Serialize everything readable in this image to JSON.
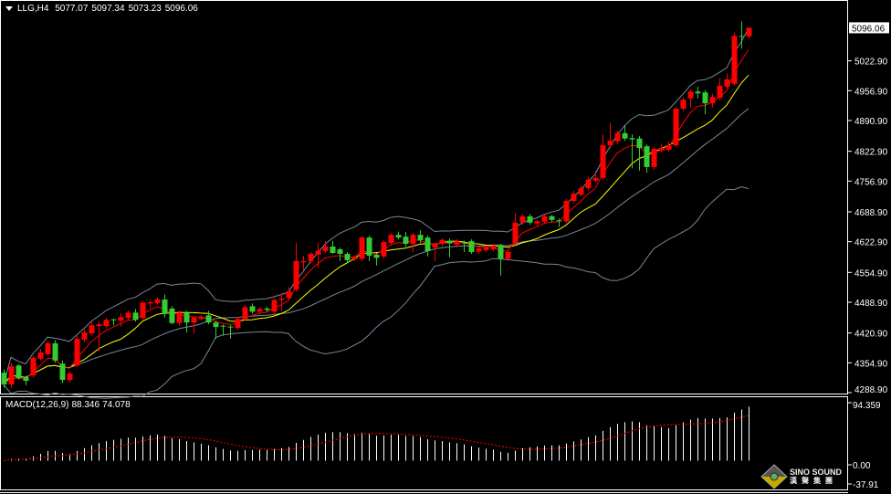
{
  "header": {
    "symbol": "LLG,H4",
    "open": "5077.07",
    "high": "5097.34",
    "low": "5073.23",
    "close": "5096.06"
  },
  "macd_header": {
    "label": "MACD(12,26,9)",
    "main": "88.346",
    "signal": "74.078"
  },
  "logo": {
    "en": "SINO SOUND",
    "cn": "漢聲集團"
  },
  "colors": {
    "up": "#ff0000",
    "down": "#32cd32",
    "ma_fast": "#ff0000",
    "ma_slow": "#ffff00",
    "bands": "#778899",
    "macd_hist": "#ffffff",
    "macd_signal": "#ff0000"
  },
  "chart_data": {
    "type": "candlestick",
    "title": "LLG,H4",
    "ylim": [
      4288.9,
      5157.5
    ],
    "price_axis_ticks": [
      "5022.90",
      "4956.90",
      "4890.90",
      "4822.90",
      "4756.90",
      "4688.90",
      "4622.90",
      "4554.90",
      "4488.90",
      "4420.90",
      "4354.90",
      "4288.90"
    ],
    "current_price": "5096.06",
    "macd_axis_ticks": [
      "94.359",
      "0.00",
      "-37.91"
    ],
    "macd_ylim": [
      -37.91,
      94.359
    ],
    "ohlc": [
      [
        4333,
        4340,
        4300,
        4307
      ],
      [
        4307,
        4355,
        4300,
        4347
      ],
      [
        4349,
        4352,
        4318,
        4321
      ],
      [
        4323,
        4326,
        4305,
        4315
      ],
      [
        4327,
        4370,
        4322,
        4366
      ],
      [
        4364,
        4385,
        4360,
        4378
      ],
      [
        4374,
        4402,
        4370,
        4398
      ],
      [
        4398,
        4405,
        4355,
        4360
      ],
      [
        4353,
        4360,
        4310,
        4317
      ],
      [
        4317,
        4335,
        4312,
        4331
      ],
      [
        4349,
        4415,
        4345,
        4408
      ],
      [
        4406,
        4430,
        4400,
        4422
      ],
      [
        4420,
        4445,
        4415,
        4438
      ],
      [
        4436,
        4446,
        4380,
        4440
      ],
      [
        4436,
        4455,
        4430,
        4450
      ],
      [
        4451,
        4453,
        4438,
        4449
      ],
      [
        4448,
        4465,
        4435,
        4456
      ],
      [
        4454,
        4470,
        4450,
        4466
      ],
      [
        4466,
        4474,
        4446,
        4450
      ],
      [
        4454,
        4492,
        4450,
        4488
      ],
      [
        4486,
        4494,
        4474,
        4489
      ],
      [
        4487,
        4500,
        4483,
        4495
      ],
      [
        4495,
        4506,
        4455,
        4463
      ],
      [
        4475,
        4480,
        4440,
        4443
      ],
      [
        4443,
        4470,
        4437,
        4466
      ],
      [
        4466,
        4470,
        4422,
        4444
      ],
      [
        4444,
        4458,
        4420,
        4455
      ],
      [
        4452,
        4460,
        4448,
        4456
      ],
      [
        4460,
        4470,
        4440,
        4444
      ],
      [
        4444,
        4448,
        4408,
        4434
      ],
      [
        4437,
        4440,
        4415,
        4435
      ],
      [
        4435,
        4438,
        4408,
        4433
      ],
      [
        4432,
        4456,
        4428,
        4452
      ],
      [
        4452,
        4482,
        4448,
        4478
      ],
      [
        4480,
        4486,
        4464,
        4468
      ],
      [
        4468,
        4478,
        4462,
        4474
      ],
      [
        4475,
        4479,
        4468,
        4472
      ],
      [
        4468,
        4498,
        4460,
        4494
      ],
      [
        4494,
        4510,
        4470,
        4497
      ],
      [
        4498,
        4522,
        4494,
        4513
      ],
      [
        4517,
        4620,
        4512,
        4580
      ],
      [
        4577,
        4592,
        4560,
        4580
      ],
      [
        4580,
        4600,
        4575,
        4596
      ],
      [
        4594,
        4620,
        4565,
        4603
      ],
      [
        4602,
        4625,
        4598,
        4612
      ],
      [
        4612,
        4625,
        4596,
        4598
      ],
      [
        4606,
        4610,
        4580,
        4596
      ],
      [
        4596,
        4600,
        4575,
        4582
      ],
      [
        4584,
        4592,
        4580,
        4588
      ],
      [
        4585,
        4636,
        4580,
        4632
      ],
      [
        4632,
        4636,
        4580,
        4592
      ],
      [
        4594,
        4598,
        4570,
        4587
      ],
      [
        4590,
        4626,
        4586,
        4622
      ],
      [
        4620,
        4642,
        4616,
        4638
      ],
      [
        4638,
        4645,
        4628,
        4632
      ],
      [
        4634,
        4645,
        4612,
        4618
      ],
      [
        4618,
        4642,
        4600,
        4638
      ],
      [
        4638,
        4648,
        4620,
        4626
      ],
      [
        4632,
        4636,
        4590,
        4602
      ],
      [
        4610,
        4620,
        4580,
        4617
      ],
      [
        4618,
        4630,
        4612,
        4627
      ],
      [
        4625,
        4630,
        4588,
        4619
      ],
      [
        4616,
        4628,
        4610,
        4624
      ],
      [
        4621,
        4625,
        4600,
        4619
      ],
      [
        4624,
        4628,
        4596,
        4600
      ],
      [
        4601,
        4612,
        4596,
        4608
      ],
      [
        4604,
        4614,
        4600,
        4610
      ],
      [
        4606,
        4618,
        4602,
        4614
      ],
      [
        4614,
        4618,
        4548,
        4585
      ],
      [
        4585,
        4604,
        4580,
        4600
      ],
      [
        4620,
        4685,
        4616,
        4665
      ],
      [
        4665,
        4684,
        4660,
        4679
      ],
      [
        4679,
        4684,
        4660,
        4665
      ],
      [
        4663,
        4672,
        4658,
        4668
      ],
      [
        4667,
        4684,
        4662,
        4679
      ],
      [
        4679,
        4682,
        4666,
        4671
      ],
      [
        4670,
        4674,
        4655,
        4669
      ],
      [
        4668,
        4718,
        4664,
        4713
      ],
      [
        4713,
        4735,
        4708,
        4729
      ],
      [
        4727,
        4746,
        4722,
        4741
      ],
      [
        4741,
        4766,
        4736,
        4760
      ],
      [
        4758,
        4780,
        4754,
        4764
      ],
      [
        4764,
        4860,
        4760,
        4836
      ],
      [
        4836,
        4885,
        4830,
        4846
      ],
      [
        4845,
        4868,
        4838,
        4863
      ],
      [
        4863,
        4880,
        4846,
        4851
      ],
      [
        4852,
        4860,
        4785,
        4849
      ],
      [
        4851,
        4856,
        4780,
        4830
      ],
      [
        4834,
        4838,
        4775,
        4788
      ],
      [
        4788,
        4832,
        4782,
        4828
      ],
      [
        4826,
        4840,
        4820,
        4830
      ],
      [
        4826,
        4845,
        4822,
        4836
      ],
      [
        4836,
        4922,
        4832,
        4917
      ],
      [
        4917,
        4942,
        4912,
        4937
      ],
      [
        4940,
        4960,
        4920,
        4955
      ],
      [
        4955,
        4966,
        4940,
        4951
      ],
      [
        4953,
        4958,
        4905,
        4929
      ],
      [
        4929,
        4950,
        4920,
        4943
      ],
      [
        4941,
        4985,
        4936,
        4968
      ],
      [
        4966,
        4995,
        4962,
        4982
      ],
      [
        4972,
        5085,
        4968,
        5078
      ],
      [
        5078,
        5110,
        5050,
        5076
      ],
      [
        5077.07,
        5097.34,
        5073.23,
        5096.06
      ]
    ]
  }
}
